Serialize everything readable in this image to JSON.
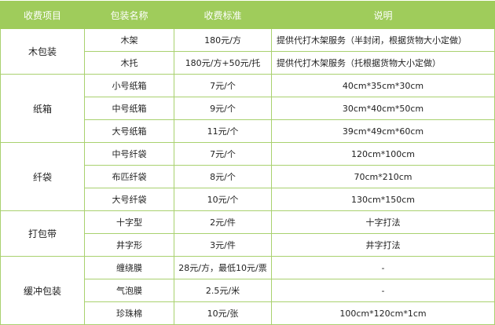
{
  "colors": {
    "header_bg": "#9fcc5b",
    "border": "#a9d16f",
    "header_text": "#ffffff"
  },
  "headers": [
    "收费项目",
    "包装名称",
    "收费标准",
    "说明"
  ],
  "groups": [
    {
      "category": "木包装",
      "rows": [
        {
          "name": "木架",
          "price": "180元/方",
          "note": "提供代打木架服务（半封闭，根据货物大小定做）",
          "align": "left"
        },
        {
          "name": "木托",
          "price": "180元/方+50元/托",
          "note": "提供代打木架服务（托根据货物大小定做）",
          "align": "left"
        }
      ]
    },
    {
      "category": "纸箱",
      "rows": [
        {
          "name": "小号纸箱",
          "price": "7元/个",
          "note": "40cm*35cm*30cm"
        },
        {
          "name": "中号纸箱",
          "price": "9元/个",
          "note": "30cm*40cm*50cm"
        },
        {
          "name": "大号纸箱",
          "price": "11元/个",
          "note": "39cm*49cm*60cm"
        }
      ]
    },
    {
      "category": "纤袋",
      "rows": [
        {
          "name": "中号纤袋",
          "price": "7元/个",
          "note": "120cm*100cm"
        },
        {
          "name": "布匹纤袋",
          "price": "8元/个",
          "note": "70cm*210cm"
        },
        {
          "name": "大号纤袋",
          "price": "10元/个",
          "note": "130cm*150cm"
        }
      ]
    },
    {
      "category": "打包带",
      "rows": [
        {
          "name": "十字型",
          "price": "2元/件",
          "note": "十字打法"
        },
        {
          "name": "井字形",
          "price": "3元/件",
          "note": "井字打法"
        }
      ]
    },
    {
      "category": "缓冲包装",
      "rows": [
        {
          "name": "缠绕膜",
          "price": "28元/方，最低10元/票",
          "note": "-"
        },
        {
          "name": "气泡膜",
          "price": "2.5元/米",
          "note": "-"
        },
        {
          "name": "珍珠棉",
          "price": "10元/张",
          "note": "100cm*120cm*1cm"
        }
      ]
    }
  ]
}
